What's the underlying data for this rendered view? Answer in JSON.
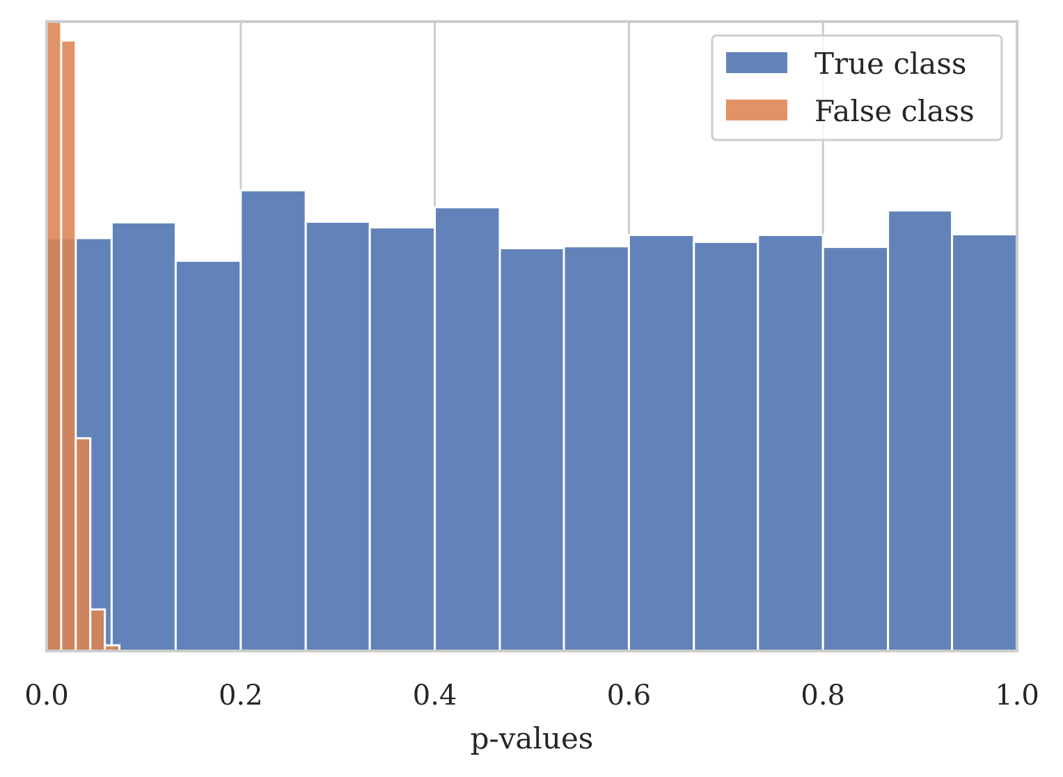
{
  "chart_data": {
    "type": "bar",
    "xlabel": "p-values",
    "ylabel": "",
    "xlim": [
      0.0,
      1.0
    ],
    "ylim": [
      0,
      100
    ],
    "x_ticks": [
      "0.0",
      "0.2",
      "0.4",
      "0.6",
      "0.8",
      "1.0"
    ],
    "grid": "vertical",
    "legend_position": "top-right",
    "series": [
      {
        "name": "True class",
        "color": "#4c72b0",
        "bins": [
          {
            "x0": 0.0,
            "x1": 0.067,
            "value": 65.6
          },
          {
            "x0": 0.067,
            "x1": 0.133,
            "value": 68.1
          },
          {
            "x0": 0.133,
            "x1": 0.2,
            "value": 62.0
          },
          {
            "x0": 0.2,
            "x1": 0.267,
            "value": 73.2
          },
          {
            "x0": 0.267,
            "x1": 0.333,
            "value": 68.2
          },
          {
            "x0": 0.333,
            "x1": 0.4,
            "value": 67.3
          },
          {
            "x0": 0.4,
            "x1": 0.467,
            "value": 70.5
          },
          {
            "x0": 0.467,
            "x1": 0.533,
            "value": 64.0
          },
          {
            "x0": 0.533,
            "x1": 0.6,
            "value": 64.3
          },
          {
            "x0": 0.6,
            "x1": 0.667,
            "value": 66.1
          },
          {
            "x0": 0.667,
            "x1": 0.733,
            "value": 65.0
          },
          {
            "x0": 0.733,
            "x1": 0.8,
            "value": 66.1
          },
          {
            "x0": 0.8,
            "x1": 0.867,
            "value": 64.2
          },
          {
            "x0": 0.867,
            "x1": 0.933,
            "value": 70.0
          },
          {
            "x0": 0.933,
            "x1": 1.0,
            "value": 66.2
          }
        ]
      },
      {
        "name": "False class",
        "color": "#dd8452",
        "bins": [
          {
            "x0": 0.0,
            "x1": 0.015,
            "value": 100.0
          },
          {
            "x0": 0.015,
            "x1": 0.03,
            "value": 97.0
          },
          {
            "x0": 0.03,
            "x1": 0.045,
            "value": 33.8
          },
          {
            "x0": 0.045,
            "x1": 0.06,
            "value": 6.6
          },
          {
            "x0": 0.06,
            "x1": 0.075,
            "value": 0.9
          }
        ]
      }
    ]
  }
}
